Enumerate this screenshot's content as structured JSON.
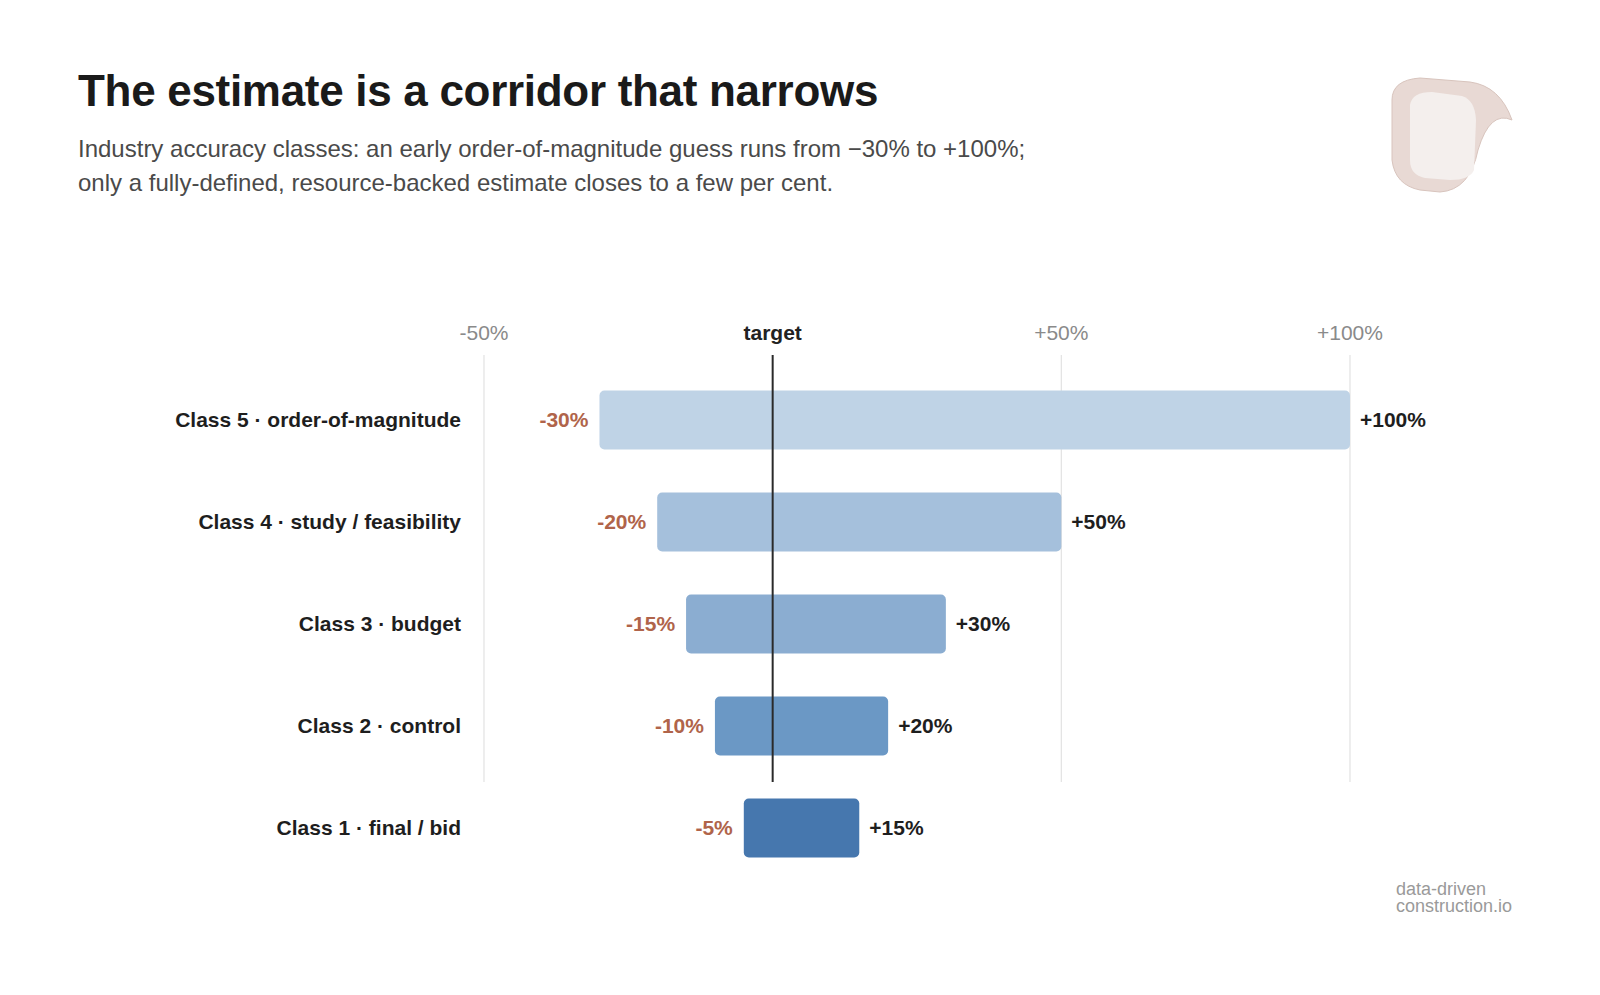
{
  "chart_data": {
    "type": "bar",
    "orientation": "horizontal",
    "title": "The estimate is a corridor that narrows",
    "subtitle": "Industry accuracy classes: an early order-of-magnitude guess runs from −30% to +100%; only a fully-defined, resource-backed estimate closes to a few per cent.",
    "categories": [
      "Class 5 · order-of-magnitude",
      "Class 4 · study / feasibility",
      "Class 3 · budget",
      "Class 2 · control",
      "Class 1 · final / bid"
    ],
    "values": [
      [
        -30,
        100
      ],
      [
        -20,
        50
      ],
      [
        -15,
        30
      ],
      [
        -10,
        20
      ],
      [
        -5,
        15
      ]
    ],
    "value_labels": [
      [
        "-30%",
        "+100%"
      ],
      [
        "-20%",
        "+50%"
      ],
      [
        "-15%",
        "+30%"
      ],
      [
        "-10%",
        "+20%"
      ],
      [
        "-5%",
        "+15%"
      ]
    ],
    "colors": [
      "#bfd3e6",
      "#a5c0dc",
      "#8badd1",
      "#6b98c5",
      "#4677ae"
    ],
    "xlim": [
      -50,
      100
    ],
    "xticks": [
      {
        "value": -50,
        "label": "-50%"
      },
      {
        "value": 0,
        "label": "target"
      },
      {
        "value": 50,
        "label": "+50%"
      },
      {
        "value": 100,
        "label": "+100%"
      }
    ],
    "grid": true,
    "data_labels": true,
    "footer": [
      "data-driven",
      "construction.io"
    ]
  }
}
